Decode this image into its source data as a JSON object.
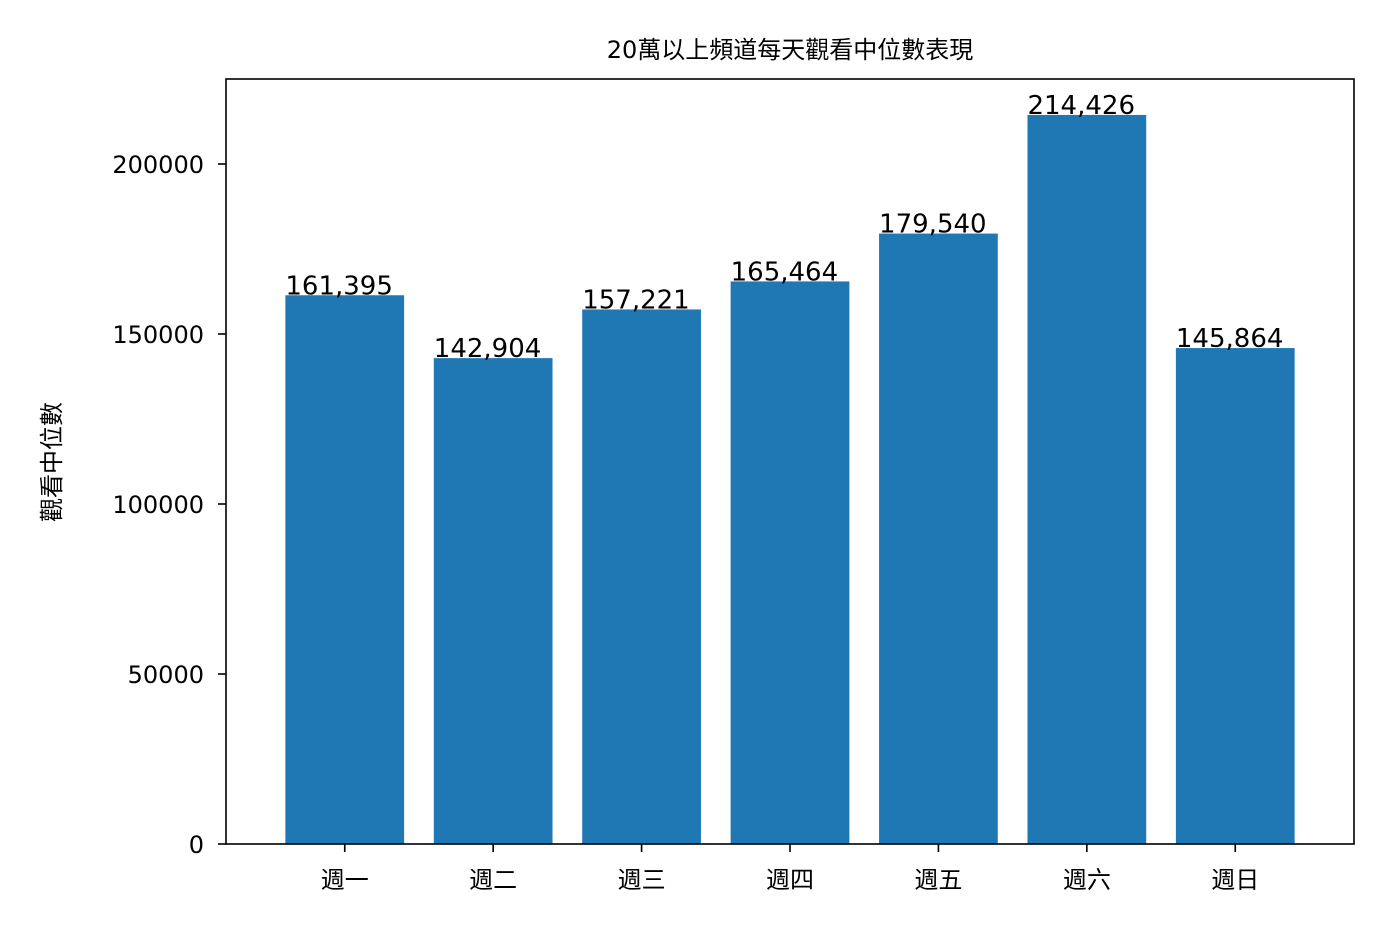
{
  "chart_data": {
    "type": "bar",
    "title": "20萬以上頻道每天觀看中位數表現",
    "xlabel": "",
    "ylabel": "觀看中位數",
    "categories": [
      "週一",
      "週二",
      "週三",
      "週四",
      "週五",
      "週六",
      "週日"
    ],
    "values": [
      161395,
      142904,
      157221,
      165464,
      179540,
      214426,
      145864
    ],
    "value_labels": [
      "161,395",
      "142,904",
      "157,221",
      "165,464",
      "179,540",
      "214,426",
      "145,864"
    ],
    "ylim": [
      0,
      225000
    ],
    "yticks": [
      0,
      50000,
      100000,
      150000,
      200000
    ],
    "ytick_labels": [
      "0",
      "50000",
      "100000",
      "150000",
      "200000"
    ],
    "bar_color": "#1f77b4",
    "grid": false,
    "legend": "none"
  }
}
